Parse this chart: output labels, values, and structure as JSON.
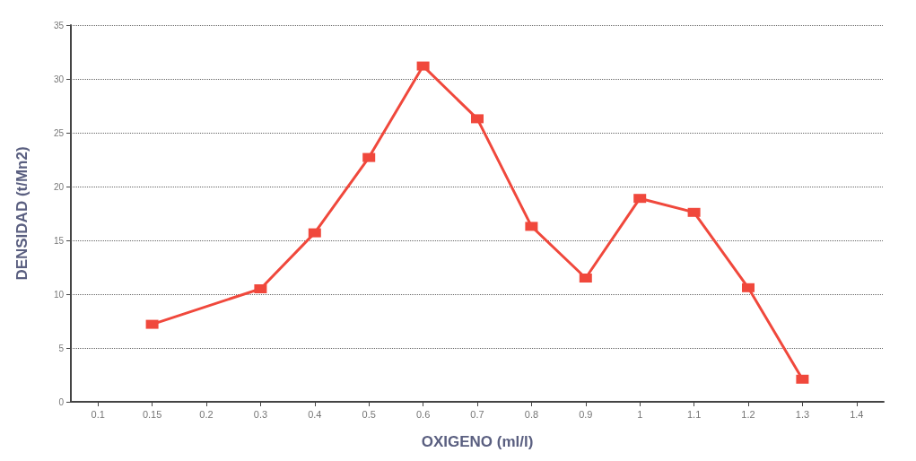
{
  "chart_data": {
    "type": "line",
    "xlabel": "OXIGENO (ml/l)",
    "ylabel": "DENSIDAD (t/Mn2)",
    "categories": [
      "0.1",
      "0.15",
      "0.2",
      "0.3",
      "0.4",
      "0.5",
      "0.6",
      "0.7",
      "0.8",
      "0.9",
      "1",
      "1.1",
      "1.2",
      "1.3",
      "1.4"
    ],
    "series": [
      {
        "color": "#f0483c",
        "values": [
          null,
          7.2,
          null,
          10.5,
          15.7,
          22.7,
          31.2,
          26.3,
          16.3,
          11.5,
          18.9,
          17.6,
          10.6,
          2.1,
          null
        ]
      }
    ],
    "ylim": [
      0,
      35
    ],
    "yticks": [
      0,
      5,
      10,
      15,
      20,
      25,
      30,
      35
    ],
    "grid": "y",
    "marker": "square",
    "line_style": "solid"
  }
}
